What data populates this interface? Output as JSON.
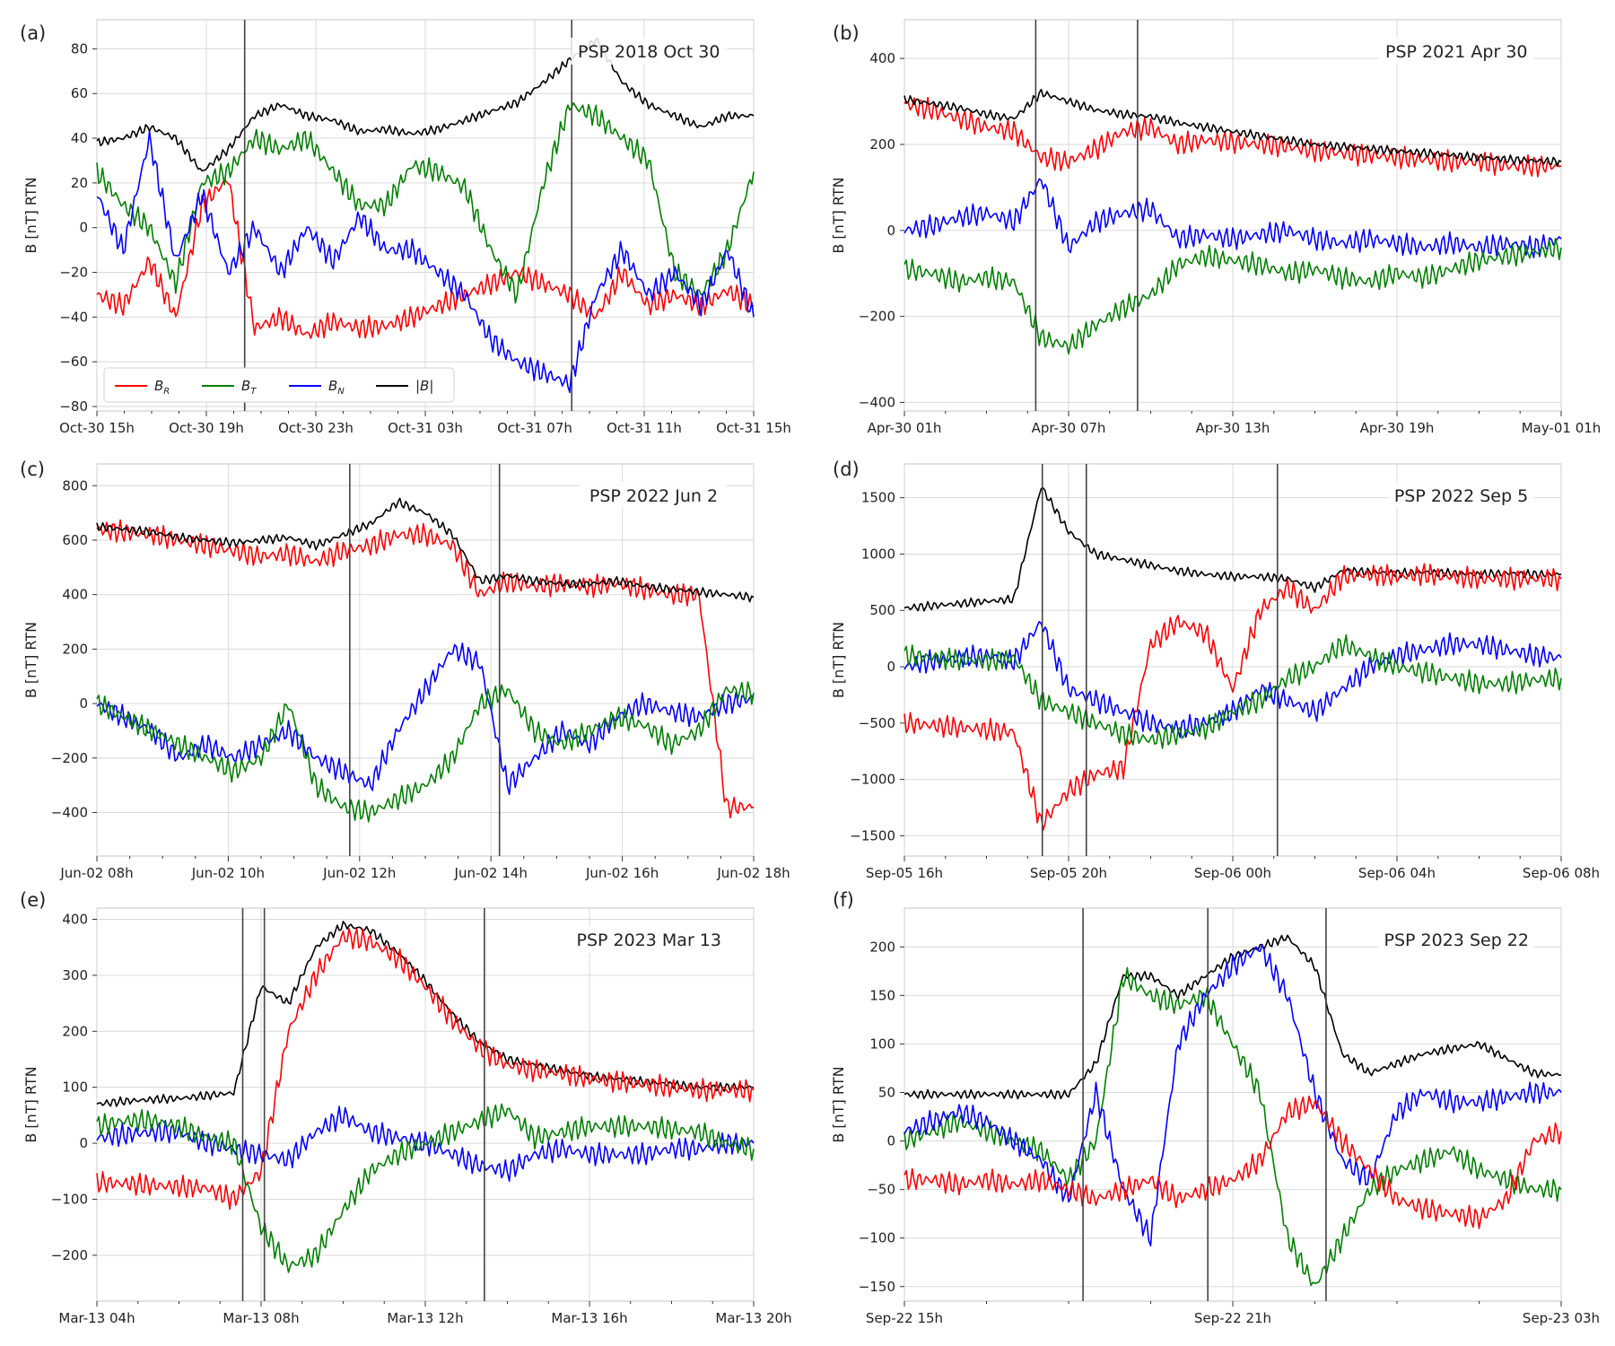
{
  "figure": {
    "ylabel": "B [nT] RTN",
    "legend": [
      {
        "label": "B_R",
        "color": "#ff0000"
      },
      {
        "label": "B_T",
        "color": "#008000"
      },
      {
        "label": "B_N",
        "color": "#0000ff"
      },
      {
        "label": "|B|",
        "color": "#000000"
      }
    ]
  },
  "chart_data": [
    {
      "panel": "(a)",
      "type": "line",
      "title": "PSP 2018 Oct 30",
      "ylabel": "B [nT] RTN",
      "ylim": [
        -82,
        93
      ],
      "yticks": [
        -80,
        -60,
        -40,
        -20,
        0,
        20,
        40,
        60,
        80
      ],
      "xticks": [
        "Oct-30 15h",
        "Oct-30 19h",
        "Oct-30 23h",
        "Oct-31 03h",
        "Oct-31 07h",
        "Oct-31 11h",
        "Oct-31 15h"
      ],
      "event_lines_x": [
        0.225,
        0.723
      ],
      "legend_placement": "lower-left",
      "series": [
        {
          "name": "B_R",
          "color": "#ff0000",
          "values": [
            -30,
            -35,
            -15,
            -40,
            10,
            22,
            -45,
            -40,
            -48,
            -42,
            -45,
            -44,
            -40,
            -35,
            -30,
            -25,
            -20,
            -25,
            -30,
            -40,
            -20,
            -35,
            -30,
            -35,
            -28,
            -35
          ]
        },
        {
          "name": "B_T",
          "color": "#008000",
          "values": [
            25,
            10,
            0,
            -25,
            20,
            25,
            40,
            35,
            40,
            25,
            10,
            10,
            28,
            25,
            18,
            -10,
            -30,
            20,
            55,
            50,
            40,
            30,
            -20,
            -30,
            -10,
            25
          ]
        },
        {
          "name": "B_N",
          "color": "#0000ff",
          "values": [
            15,
            -10,
            40,
            -15,
            15,
            -20,
            0,
            -20,
            0,
            -15,
            5,
            -10,
            -10,
            -20,
            -30,
            -50,
            -60,
            -65,
            -70,
            -30,
            -10,
            -30,
            -20,
            -35,
            -10,
            -40
          ]
        },
        {
          "name": "|B|",
          "color": "#000000",
          "values": [
            38,
            40,
            45,
            40,
            25,
            35,
            50,
            55,
            50,
            48,
            43,
            44,
            42,
            44,
            48,
            52,
            56,
            65,
            75,
            84,
            65,
            55,
            50,
            45,
            50,
            50
          ]
        }
      ]
    },
    {
      "panel": "(b)",
      "type": "line",
      "title": "PSP 2021 Apr 30",
      "ylabel": "B [nT] RTN",
      "ylim": [
        -420,
        490
      ],
      "yticks": [
        -400,
        -200,
        0,
        200,
        400
      ],
      "xticks": [
        "Apr-30 01h",
        "Apr-30 07h",
        "Apr-30 13h",
        "Apr-30 19h",
        "May-01 01h"
      ],
      "event_lines_x": [
        0.2,
        0.355
      ],
      "series": [
        {
          "name": "B_R",
          "color": "#ff0000",
          "values": [
            295,
            280,
            260,
            240,
            230,
            170,
            160,
            190,
            230,
            240,
            200,
            210,
            205,
            200,
            195,
            185,
            180,
            175,
            170,
            165,
            160,
            160,
            150,
            150,
            150
          ]
        },
        {
          "name": "|B|",
          "color": "#000000",
          "values": [
            305,
            295,
            285,
            270,
            260,
            320,
            300,
            280,
            270,
            265,
            250,
            240,
            230,
            220,
            210,
            200,
            195,
            190,
            185,
            180,
            175,
            170,
            165,
            162,
            160
          ]
        },
        {
          "name": "B_N",
          "color": "#0000ff",
          "values": [
            0,
            10,
            30,
            40,
            20,
            120,
            -40,
            20,
            40,
            50,
            -20,
            -10,
            -20,
            -10,
            0,
            -20,
            -30,
            -20,
            -30,
            -40,
            -30,
            -40,
            -30,
            -40,
            -20
          ]
        },
        {
          "name": "B_T",
          "color": "#008000",
          "values": [
            -90,
            -100,
            -120,
            -110,
            -120,
            -250,
            -270,
            -220,
            -180,
            -150,
            -80,
            -60,
            -70,
            -80,
            -100,
            -90,
            -110,
            -120,
            -100,
            -110,
            -90,
            -70,
            -60,
            -50,
            -40
          ]
        }
      ]
    },
    {
      "panel": "(c)",
      "type": "line",
      "title": "PSP 2022 Jun 2",
      "ylabel": "B [nT] RTN",
      "ylim": [
        -560,
        880
      ],
      "yticks": [
        -400,
        -200,
        0,
        200,
        400,
        600,
        800
      ],
      "xticks": [
        "Jun-02 08h",
        "Jun-02 10h",
        "Jun-02 12h",
        "Jun-02 14h",
        "Jun-02 16h",
        "Jun-02 18h"
      ],
      "event_lines_x": [
        0.385,
        0.613
      ],
      "series": [
        {
          "name": "B_R",
          "color": "#ff0000",
          "values": [
            640,
            630,
            620,
            600,
            580,
            560,
            540,
            550,
            520,
            560,
            580,
            620,
            620,
            580,
            400,
            450,
            430,
            440,
            430,
            440,
            420,
            400,
            400,
            -380,
            -380
          ]
        },
        {
          "name": "|B|",
          "color": "#000000",
          "values": [
            650,
            640,
            630,
            610,
            600,
            590,
            600,
            610,
            580,
            620,
            660,
            740,
            700,
            620,
            450,
            470,
            450,
            440,
            440,
            450,
            430,
            420,
            410,
            400,
            390
          ]
        },
        {
          "name": "B_N",
          "color": "#0000ff",
          "values": [
            0,
            -50,
            -100,
            -200,
            -150,
            -200,
            -150,
            -100,
            -200,
            -250,
            -300,
            -100,
            50,
            200,
            150,
            -300,
            -200,
            -100,
            -150,
            -50,
            0,
            -30,
            -50,
            0,
            20
          ]
        },
        {
          "name": "B_T",
          "color": "#008000",
          "values": [
            0,
            -50,
            -100,
            -150,
            -200,
            -250,
            -200,
            0,
            -300,
            -380,
            -400,
            -350,
            -300,
            -200,
            0,
            50,
            -100,
            -150,
            -100,
            -50,
            -80,
            -150,
            -100,
            50,
            40
          ]
        }
      ]
    },
    {
      "panel": "(d)",
      "type": "line",
      "title": "PSP 2022 Sep 5",
      "ylabel": "B [nT] RTN",
      "ylim": [
        -1680,
        1800
      ],
      "yticks": [
        -1500,
        -1000,
        -500,
        0,
        500,
        1000,
        1500
      ],
      "xticks": [
        "Sep-05 16h",
        "Sep-05 20h",
        "Sep-06 00h",
        "Sep-06 04h",
        "Sep-06 08h"
      ],
      "event_lines_x": [
        0.21,
        0.277,
        0.568
      ],
      "series": [
        {
          "name": "|B|",
          "color": "#000000",
          "values": [
            520,
            540,
            560,
            580,
            600,
            1600,
            1200,
            1000,
            950,
            900,
            850,
            820,
            800,
            800,
            780,
            700,
            850,
            840,
            830,
            840,
            830,
            820,
            830,
            820,
            820
          ]
        },
        {
          "name": "B_R",
          "color": "#ff0000",
          "values": [
            -500,
            -520,
            -540,
            -560,
            -580,
            -1400,
            -1100,
            -950,
            -900,
            200,
            400,
            300,
            -200,
            500,
            700,
            500,
            800,
            820,
            800,
            820,
            800,
            780,
            780,
            780,
            780
          ]
        },
        {
          "name": "B_N",
          "color": "#0000ff",
          "values": [
            0,
            50,
            80,
            100,
            50,
            400,
            -200,
            -300,
            -400,
            -500,
            -550,
            -500,
            -400,
            -200,
            -300,
            -400,
            -200,
            0,
            100,
            150,
            200,
            200,
            150,
            100,
            80
          ]
        },
        {
          "name": "B_T",
          "color": "#008000",
          "values": [
            100,
            80,
            60,
            50,
            80,
            -300,
            -400,
            -500,
            -600,
            -650,
            -600,
            -550,
            -400,
            -300,
            -100,
            0,
            200,
            100,
            0,
            -50,
            -100,
            -150,
            -150,
            -120,
            -100
          ]
        }
      ]
    },
    {
      "panel": "(e)",
      "type": "line",
      "title": "PSP 2023 Mar 13",
      "ylabel": "B [nT] RTN",
      "ylim": [
        -282,
        420
      ],
      "yticks": [
        -200,
        -100,
        0,
        100,
        200,
        300,
        400
      ],
      "xticks": [
        "Mar-13 04h",
        "Mar-13 08h",
        "Mar-13 12h",
        "Mar-13 16h",
        "Mar-13 20h"
      ],
      "event_lines_x": [
        0.222,
        0.255,
        0.59
      ],
      "series": [
        {
          "name": "|B|",
          "color": "#000000",
          "values": [
            70,
            75,
            78,
            80,
            85,
            90,
            280,
            250,
            350,
            390,
            380,
            340,
            290,
            230,
            180,
            150,
            140,
            130,
            120,
            115,
            110,
            105,
            100,
            100,
            100
          ]
        },
        {
          "name": "B_R",
          "color": "#ff0000",
          "values": [
            -70,
            -72,
            -75,
            -78,
            -80,
            -100,
            -50,
            200,
            300,
            370,
            360,
            330,
            280,
            220,
            170,
            140,
            130,
            125,
            115,
            110,
            105,
            100,
            95,
            95,
            95
          ]
        },
        {
          "name": "B_N",
          "color": "#0000ff",
          "values": [
            10,
            15,
            20,
            20,
            0,
            -10,
            -20,
            -30,
            20,
            50,
            20,
            10,
            0,
            -20,
            -40,
            -50,
            -20,
            -10,
            -20,
            -20,
            -20,
            -10,
            -10,
            0,
            0
          ]
        },
        {
          "name": "B_T",
          "color": "#008000",
          "values": [
            30,
            40,
            40,
            30,
            10,
            0,
            -150,
            -220,
            -200,
            -120,
            -50,
            -20,
            0,
            20,
            40,
            60,
            10,
            20,
            30,
            30,
            30,
            25,
            20,
            0,
            -10
          ]
        }
      ]
    },
    {
      "panel": "(f)",
      "type": "line",
      "title": "PSP 2023 Sep 22",
      "ylabel": "B [nT] RTN",
      "ylim": [
        -165,
        240
      ],
      "yticks": [
        -150,
        -100,
        -50,
        0,
        50,
        100,
        150,
        200
      ],
      "xticks": [
        "Sep-22 15h",
        "Sep-22 21h",
        "Sep-23 03h"
      ],
      "event_lines_x": [
        0.272,
        0.462,
        0.642
      ],
      "series": [
        {
          "name": "|B|",
          "color": "#000000",
          "values": [
            48,
            48,
            48,
            48,
            48,
            48,
            48,
            80,
            170,
            170,
            150,
            170,
            190,
            200,
            210,
            180,
            90,
            70,
            80,
            90,
            95,
            100,
            85,
            70,
            68
          ]
        },
        {
          "name": "B_T",
          "color": "#008000",
          "values": [
            0,
            10,
            20,
            10,
            0,
            -10,
            -40,
            0,
            170,
            150,
            140,
            150,
            100,
            50,
            -100,
            -150,
            -100,
            -50,
            -30,
            -20,
            -10,
            -30,
            -40,
            -50,
            -50
          ]
        },
        {
          "name": "B_N",
          "color": "#0000ff",
          "values": [
            10,
            20,
            30,
            20,
            0,
            -20,
            -60,
            50,
            -50,
            -100,
            100,
            150,
            180,
            200,
            150,
            50,
            -20,
            -40,
            30,
            50,
            40,
            40,
            45,
            50,
            50
          ]
        },
        {
          "name": "B_R",
          "color": "#ff0000",
          "values": [
            -40,
            -40,
            -45,
            -40,
            -45,
            -40,
            -50,
            -60,
            -50,
            -40,
            -60,
            -50,
            -40,
            -20,
            30,
            40,
            0,
            -30,
            -60,
            -70,
            -75,
            -80,
            -60,
            0,
            10
          ]
        }
      ]
    }
  ]
}
